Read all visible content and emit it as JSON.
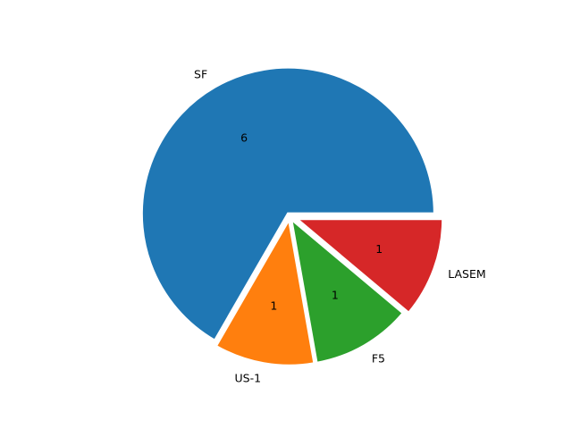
{
  "chart_data": {
    "type": "pie",
    "categories": [
      "SF",
      "US-1",
      "F5",
      "LASEM"
    ],
    "values": [
      6,
      1,
      1,
      1
    ],
    "value_labels": [
      "6",
      "1",
      "1",
      "1"
    ],
    "colors": [
      "#1f77b4",
      "#ff7f0e",
      "#2ca02c",
      "#d62728"
    ],
    "start_angle_deg": 0,
    "direction": "counterclockwise",
    "legend": "none"
  }
}
